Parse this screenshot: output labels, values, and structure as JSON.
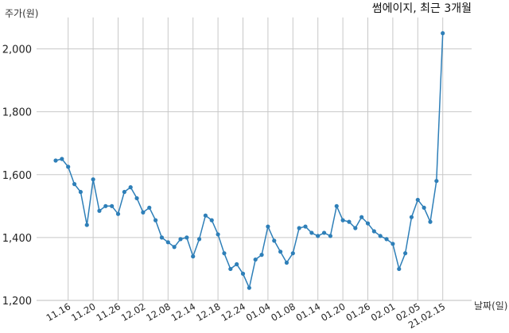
{
  "chart_data": {
    "type": "line",
    "title": "썸에이지, 최근 3개월",
    "ylabel": "주가(원)",
    "xlabel": "날짜(일)",
    "ylim": [
      1200,
      2100
    ],
    "yticks": [
      1200,
      1400,
      1600,
      1800,
      2000
    ],
    "ytick_labels": [
      "1,200",
      "1,400",
      "1,600",
      "1,800",
      "2,000"
    ],
    "xtick_labels": [
      "11.16",
      "11.20",
      "11.26",
      "12.02",
      "12.08",
      "12.14",
      "12.18",
      "12.24",
      "01.04",
      "01.08",
      "01.14",
      "01.20",
      "01.26",
      "02.01",
      "02.05",
      "21.02.15"
    ],
    "xtick_index": [
      2,
      6,
      10,
      14,
      18,
      22,
      26,
      30,
      34,
      38,
      42,
      46,
      50,
      54,
      58,
      62
    ],
    "grid": true,
    "series": [
      {
        "values": [
          1645,
          1650,
          1625,
          1570,
          1545,
          1440,
          1585,
          1485,
          1500,
          1500,
          1475,
          1545,
          1560,
          1525,
          1480,
          1495,
          1455,
          1400,
          1385,
          1370,
          1395,
          1400,
          1340,
          1395,
          1470,
          1455,
          1410,
          1350,
          1300,
          1315,
          1285,
          1240,
          1330,
          1345,
          1435,
          1390,
          1355,
          1320,
          1350,
          1430,
          1435,
          1415,
          1405,
          1415,
          1405,
          1500,
          1455,
          1450,
          1430,
          1465,
          1445,
          1420,
          1405,
          1395,
          1380,
          1300,
          1350,
          1465,
          1520,
          1495,
          1450,
          1580,
          2050
        ]
      }
    ]
  }
}
